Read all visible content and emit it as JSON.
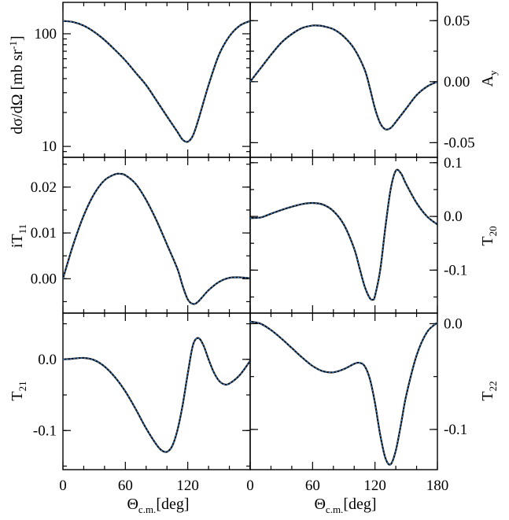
{
  "chart_data": [
    {
      "panel": "dsigma",
      "type": "line",
      "log_y": true,
      "ylim": [
        8,
        190
      ],
      "xlim": [
        0,
        180
      ],
      "ylabel": "dσ/dΩ [mb sr-1]",
      "ylabel_parts": {
        "main": "dσ/dΩ [mb sr",
        "sup": "-1",
        "close": "]"
      },
      "yticks": [
        10,
        100
      ],
      "ytick_labels": [
        "10",
        "100"
      ],
      "series": [
        {
          "color": "#111111",
          "style": "solid",
          "x": [
            0,
            10,
            20,
            30,
            40,
            50,
            60,
            70,
            80,
            90,
            100,
            110,
            115,
            120,
            125,
            130,
            140,
            150,
            160,
            170,
            180
          ],
          "y": [
            130,
            127,
            118,
            104,
            88,
            72,
            58,
            45,
            35,
            25.5,
            18.5,
            13.5,
            11.5,
            11,
            12.5,
            17,
            35,
            65,
            95,
            118,
            130
          ]
        },
        {
          "color": "#2f80d8",
          "style": "dotted",
          "x": [
            0,
            10,
            20,
            30,
            40,
            50,
            60,
            70,
            80,
            90,
            100,
            110,
            115,
            120,
            125,
            130,
            140,
            150,
            160,
            170,
            180
          ],
          "y": [
            130,
            127,
            118,
            104,
            88,
            72,
            58,
            45,
            35,
            25.5,
            18.5,
            13.5,
            11.5,
            11,
            12.5,
            17,
            35,
            65,
            95,
            118,
            130
          ]
        }
      ]
    },
    {
      "panel": "Ay",
      "type": "line",
      "ylim": [
        -0.062,
        0.065
      ],
      "xlim": [
        0,
        180
      ],
      "ylabel": "Ay",
      "ylabel_parts": {
        "main": "A",
        "sub": "y"
      },
      "yticks": [
        -0.05,
        0.0,
        0.05
      ],
      "ytick_labels": [
        "-0.05",
        "0.00",
        "0.05"
      ],
      "series": [
        {
          "color": "#111111",
          "style": "solid",
          "x": [
            0,
            10,
            20,
            30,
            40,
            50,
            60,
            65,
            70,
            80,
            90,
            100,
            110,
            115,
            120,
            125,
            130,
            135,
            140,
            150,
            160,
            170,
            180
          ],
          "y": [
            0.0,
            0.011,
            0.022,
            0.032,
            0.039,
            0.044,
            0.046,
            0.046,
            0.0455,
            0.043,
            0.037,
            0.027,
            0.01,
            -0.005,
            -0.022,
            -0.034,
            -0.039,
            -0.038,
            -0.033,
            -0.022,
            -0.011,
            -0.004,
            0.0
          ]
        },
        {
          "color": "#2f80d8",
          "style": "dotted",
          "x": [
            0,
            10,
            20,
            30,
            40,
            50,
            60,
            65,
            70,
            80,
            90,
            100,
            110,
            115,
            120,
            125,
            130,
            135,
            140,
            150,
            160,
            170,
            180
          ],
          "y": [
            0.0,
            0.011,
            0.022,
            0.032,
            0.039,
            0.044,
            0.046,
            0.046,
            0.0455,
            0.043,
            0.037,
            0.027,
            0.01,
            -0.005,
            -0.022,
            -0.034,
            -0.039,
            -0.038,
            -0.033,
            -0.022,
            -0.011,
            -0.004,
            0.0
          ]
        }
      ]
    },
    {
      "panel": "iT11",
      "type": "line",
      "ylim": [
        -0.0075,
        0.0265
      ],
      "xlim": [
        0,
        180
      ],
      "ylabel": "iT11",
      "ylabel_parts": {
        "main": "iT",
        "sub": "11"
      },
      "yticks": [
        0.0,
        0.01,
        0.02
      ],
      "ytick_labels": [
        "0.00",
        "0.01",
        "0.02"
      ],
      "series": [
        {
          "color": "#111111",
          "style": "solid",
          "x": [
            0,
            10,
            20,
            30,
            40,
            50,
            55,
            60,
            70,
            80,
            90,
            100,
            110,
            115,
            120,
            125,
            130,
            140,
            150,
            160,
            170,
            180
          ],
          "y": [
            0.0,
            0.0075,
            0.0138,
            0.0185,
            0.0215,
            0.0228,
            0.0229,
            0.0226,
            0.0207,
            0.0172,
            0.0127,
            0.0075,
            0.0022,
            -0.0015,
            -0.0045,
            -0.0055,
            -0.005,
            -0.0025,
            -0.0007,
            0.0002,
            0.0003,
            0.0001
          ]
        },
        {
          "color": "#2f80d8",
          "style": "dotted",
          "x": [
            0,
            10,
            20,
            30,
            40,
            50,
            55,
            60,
            70,
            80,
            90,
            100,
            110,
            115,
            120,
            125,
            130,
            140,
            150,
            160,
            170,
            180
          ],
          "y": [
            0.0,
            0.0075,
            0.0138,
            0.0185,
            0.0215,
            0.0228,
            0.0229,
            0.0226,
            0.0207,
            0.0172,
            0.0127,
            0.0075,
            0.0022,
            -0.0015,
            -0.0045,
            -0.0055,
            -0.005,
            -0.0025,
            -0.0007,
            0.0002,
            0.0003,
            0.0001
          ]
        }
      ]
    },
    {
      "panel": "T20",
      "type": "line",
      "ylim": [
        -0.18,
        0.11
      ],
      "xlim": [
        0,
        180
      ],
      "ylabel": "T20",
      "ylabel_parts": {
        "main": "T",
        "sub": "20"
      },
      "yticks": [
        -0.1,
        0.0,
        0.1
      ],
      "ytick_labels": [
        "-0.1",
        "0.0",
        "0.1"
      ],
      "series": [
        {
          "color": "#111111",
          "style": "solid",
          "x": [
            0,
            10,
            20,
            30,
            40,
            50,
            60,
            70,
            80,
            90,
            100,
            105,
            110,
            115,
            118,
            120,
            125,
            130,
            135,
            140,
            145,
            150,
            160,
            170,
            180
          ],
          "y": [
            -0.003,
            -0.002,
            0.005,
            0.012,
            0.018,
            0.023,
            0.025,
            0.022,
            0.01,
            -0.015,
            -0.06,
            -0.095,
            -0.13,
            -0.152,
            -0.155,
            -0.148,
            -0.1,
            -0.02,
            0.05,
            0.085,
            0.08,
            0.06,
            0.025,
            0.0,
            -0.015
          ]
        },
        {
          "color": "#2f80d8",
          "style": "dotted",
          "x": [
            0,
            10,
            20,
            30,
            40,
            50,
            60,
            70,
            80,
            90,
            100,
            105,
            110,
            115,
            118,
            120,
            125,
            130,
            135,
            140,
            145,
            150,
            160,
            170,
            180
          ],
          "y": [
            -0.003,
            -0.002,
            0.005,
            0.012,
            0.018,
            0.023,
            0.025,
            0.022,
            0.01,
            -0.015,
            -0.06,
            -0.095,
            -0.13,
            -0.152,
            -0.155,
            -0.148,
            -0.1,
            -0.02,
            0.05,
            0.085,
            0.08,
            0.06,
            0.025,
            0.0,
            -0.015
          ]
        }
      ]
    },
    {
      "panel": "T21",
      "type": "line",
      "ylim": [
        -0.155,
        0.065
      ],
      "xlim": [
        0,
        180
      ],
      "ylabel": "T21",
      "ylabel_parts": {
        "main": "T",
        "sub": "21"
      },
      "yticks": [
        -0.1,
        0.0
      ],
      "ytick_labels": [
        "-0.1",
        "0.0"
      ],
      "xticks": [
        0,
        60,
        120
      ],
      "xtick_labels": [
        "0",
        "60",
        "120"
      ],
      "xlabel_parts": {
        "main": "Θ",
        "sub": "c.m.",
        "after": "[deg]"
      },
      "xlabel": "Θc.m.[deg]",
      "series": [
        {
          "color": "#111111",
          "style": "solid",
          "x": [
            0,
            10,
            20,
            30,
            40,
            50,
            60,
            70,
            80,
            90,
            95,
            100,
            105,
            110,
            115,
            120,
            125,
            130,
            135,
            140,
            145,
            150,
            155,
            160,
            170,
            180
          ],
          "y": [
            0.0,
            0.001,
            0.002,
            -0.001,
            -0.01,
            -0.025,
            -0.045,
            -0.07,
            -0.097,
            -0.12,
            -0.128,
            -0.13,
            -0.122,
            -0.1,
            -0.065,
            -0.02,
            0.02,
            0.03,
            0.02,
            0.0,
            -0.018,
            -0.03,
            -0.035,
            -0.034,
            -0.022,
            -0.002
          ]
        },
        {
          "color": "#2f80d8",
          "style": "dotted",
          "x": [
            0,
            10,
            20,
            30,
            40,
            50,
            60,
            70,
            80,
            90,
            95,
            100,
            105,
            110,
            115,
            120,
            125,
            130,
            135,
            140,
            145,
            150,
            155,
            160,
            170,
            180
          ],
          "y": [
            0.0,
            0.001,
            0.002,
            -0.001,
            -0.01,
            -0.025,
            -0.045,
            -0.07,
            -0.097,
            -0.12,
            -0.128,
            -0.13,
            -0.122,
            -0.1,
            -0.065,
            -0.02,
            0.02,
            0.03,
            0.02,
            0.0,
            -0.018,
            -0.03,
            -0.035,
            -0.034,
            -0.022,
            -0.002
          ]
        }
      ]
    },
    {
      "panel": "T22",
      "type": "line",
      "ylim": [
        -0.138,
        0.01
      ],
      "xlim": [
        0,
        180
      ],
      "ylabel": "T22",
      "ylabel_parts": {
        "main": "T",
        "sub": "22"
      },
      "yticks": [
        -0.1,
        0.0
      ],
      "ytick_labels": [
        "-0.1",
        "0.0"
      ],
      "xticks": [
        0,
        60,
        120,
        180
      ],
      "xtick_labels": [
        "0",
        "60",
        "120",
        "180"
      ],
      "xlabel_parts": {
        "main": "Θ",
        "sub": "c.m.",
        "after": "[deg]"
      },
      "xlabel": "Θc.m.[deg]",
      "series": [
        {
          "color": "#111111",
          "style": "solid",
          "x": [
            0,
            10,
            20,
            30,
            40,
            50,
            60,
            70,
            80,
            90,
            100,
            105,
            110,
            115,
            120,
            125,
            130,
            135,
            140,
            145,
            150,
            160,
            170,
            180
          ],
          "y": [
            0.002,
            0.0,
            -0.006,
            -0.014,
            -0.023,
            -0.032,
            -0.04,
            -0.045,
            -0.046,
            -0.043,
            -0.038,
            -0.037,
            -0.04,
            -0.052,
            -0.075,
            -0.105,
            -0.127,
            -0.133,
            -0.12,
            -0.095,
            -0.068,
            -0.03,
            -0.008,
            0.001
          ]
        },
        {
          "color": "#2f80d8",
          "style": "dotted",
          "x": [
            0,
            10,
            20,
            30,
            40,
            50,
            60,
            70,
            80,
            90,
            100,
            105,
            110,
            115,
            120,
            125,
            130,
            135,
            140,
            145,
            150,
            160,
            170,
            180
          ],
          "y": [
            0.002,
            0.0,
            -0.006,
            -0.014,
            -0.023,
            -0.032,
            -0.04,
            -0.045,
            -0.046,
            -0.043,
            -0.038,
            -0.037,
            -0.04,
            -0.052,
            -0.075,
            -0.105,
            -0.127,
            -0.133,
            -0.12,
            -0.095,
            -0.068,
            -0.03,
            -0.008,
            0.001
          ]
        }
      ]
    }
  ]
}
